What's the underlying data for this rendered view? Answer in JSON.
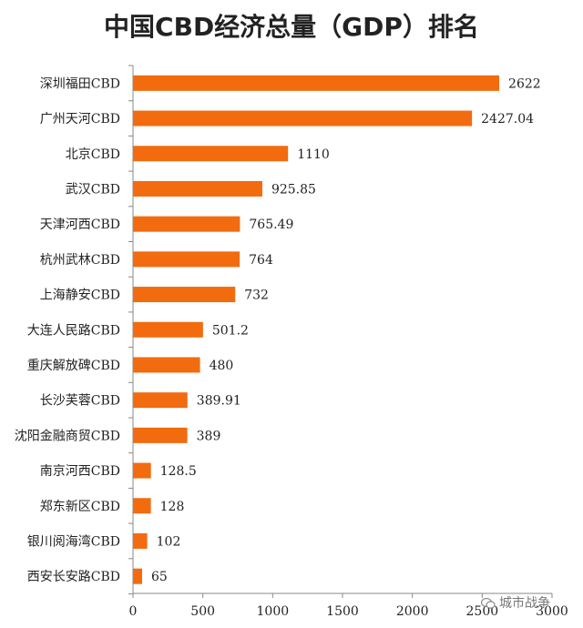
{
  "chart_data": {
    "type": "bar",
    "orientation": "horizontal",
    "title": "中国CBD经济总量（GDP）排名",
    "categories": [
      "深圳福田CBD",
      "广州天河CBD",
      "北京CBD",
      "武汉CBD",
      "天津河西CBD",
      "杭州武林CBD",
      "上海静安CBD",
      "大连人民路CBD",
      "重庆解放碑CBD",
      "长沙芙蓉CBD",
      "沈阳金融商贸CBD",
      "南京河西CBD",
      "郑东新区CBD",
      "银川阅海湾CBD",
      "西安长安路CBD"
    ],
    "values": [
      2622,
      2427.04,
      1110,
      925.85,
      765.49,
      764,
      732,
      501.2,
      480,
      389.91,
      389,
      128.5,
      128,
      102,
      65
    ],
    "value_labels": [
      "2622",
      "2427.04",
      "1110",
      "925.85",
      "765.49",
      "764",
      "732",
      "501.2",
      "480",
      "389.91",
      "389",
      "128.5",
      "128",
      "102",
      "65"
    ],
    "xlim": [
      0,
      3000
    ],
    "x_ticks": [
      "0",
      "500",
      "1000",
      "1500",
      "2000",
      "2500",
      "3000"
    ],
    "grid": false,
    "bar_color": "#f26b0f"
  },
  "watermark": {
    "text": "城市战争",
    "icon": "wechat-icon"
  }
}
